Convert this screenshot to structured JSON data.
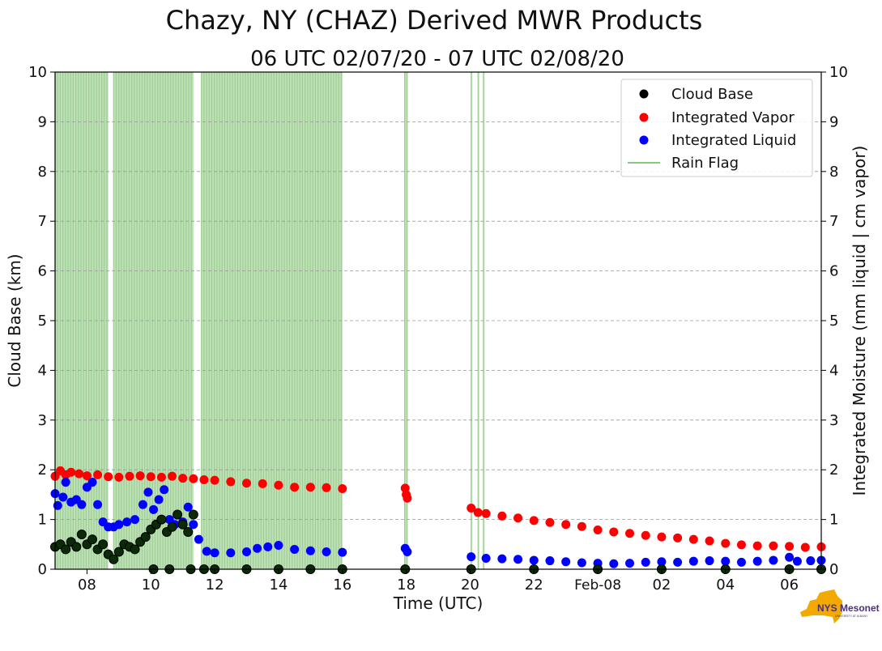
{
  "chart_data": {
    "type": "scatter",
    "title": "Chazy, NY (CHAZ) Derived MWR Products",
    "subtitle": "06 UTC 02/07/20 - 07 UTC 02/08/20",
    "xlabel": "Time (UTC)",
    "ylabel": "Cloud Base (km)",
    "ylabel_right": "Integrated Moisture (mm liquid | cm vapor)",
    "xlim": [
      "2020-02-07T07:00",
      "2020-02-08T07:00"
    ],
    "ylim": [
      0,
      10
    ],
    "ylim_right": [
      0,
      10
    ],
    "x_ticks": [
      {
        "t": "2020-02-07T08:00",
        "label": "08"
      },
      {
        "t": "2020-02-07T10:00",
        "label": "10"
      },
      {
        "t": "2020-02-07T12:00",
        "label": "12"
      },
      {
        "t": "2020-02-07T14:00",
        "label": "14"
      },
      {
        "t": "2020-02-07T16:00",
        "label": "16"
      },
      {
        "t": "2020-02-07T18:00",
        "label": "18"
      },
      {
        "t": "2020-02-07T20:00",
        "label": "20"
      },
      {
        "t": "2020-02-07T22:00",
        "label": "22"
      },
      {
        "t": "2020-02-08T00:00",
        "label": "Feb-08"
      },
      {
        "t": "2020-02-08T02:00",
        "label": "02"
      },
      {
        "t": "2020-02-08T04:00",
        "label": "04"
      },
      {
        "t": "2020-02-08T06:00",
        "label": "06"
      }
    ],
    "y_ticks": [
      "0",
      "1",
      "2",
      "3",
      "4",
      "5",
      "6",
      "7",
      "8",
      "9",
      "10"
    ],
    "grid": "horizontal dashed",
    "legend_position": "top-right",
    "legend": [
      {
        "label": "Cloud Base",
        "color": "#000000",
        "kind": "dot"
      },
      {
        "label": "Integrated Vapor",
        "color": "#ff0000",
        "kind": "dot"
      },
      {
        "label": "Integrated Liquid",
        "color": "#0000ff",
        "kind": "dot"
      },
      {
        "label": "Rain Flag",
        "color": "#5cb85c",
        "kind": "line"
      }
    ],
    "rain_flag_periods": [
      [
        "2020-02-07T07:00",
        "2020-02-07T08:40"
      ],
      [
        "2020-02-07T08:50",
        "2020-02-07T11:20"
      ],
      [
        "2020-02-07T11:35",
        "2020-02-07T16:00"
      ],
      [
        "2020-02-07T17:57",
        "2020-02-07T18:02"
      ],
      [
        "2020-02-07T20:02",
        "2020-02-07T20:04"
      ],
      [
        "2020-02-07T20:15",
        "2020-02-07T20:17"
      ],
      [
        "2020-02-07T20:25",
        "2020-02-07T20:27"
      ]
    ],
    "series": [
      {
        "name": "Integrated Vapor",
        "axis": "right",
        "color": "#ff0000",
        "points": [
          [
            "2020-02-07T07:00",
            1.87
          ],
          [
            "2020-02-07T07:10",
            1.98
          ],
          [
            "2020-02-07T07:20",
            1.9
          ],
          [
            "2020-02-07T07:30",
            1.95
          ],
          [
            "2020-02-07T07:45",
            1.92
          ],
          [
            "2020-02-07T08:00",
            1.88
          ],
          [
            "2020-02-07T08:20",
            1.9
          ],
          [
            "2020-02-07T08:40",
            1.86
          ],
          [
            "2020-02-07T09:00",
            1.85
          ],
          [
            "2020-02-07T09:20",
            1.87
          ],
          [
            "2020-02-07T09:40",
            1.88
          ],
          [
            "2020-02-07T10:00",
            1.86
          ],
          [
            "2020-02-07T10:20",
            1.85
          ],
          [
            "2020-02-07T10:40",
            1.87
          ],
          [
            "2020-02-07T11:00",
            1.83
          ],
          [
            "2020-02-07T11:20",
            1.82
          ],
          [
            "2020-02-07T11:40",
            1.8
          ],
          [
            "2020-02-07T12:00",
            1.79
          ],
          [
            "2020-02-07T12:30",
            1.76
          ],
          [
            "2020-02-07T13:00",
            1.73
          ],
          [
            "2020-02-07T13:30",
            1.72
          ],
          [
            "2020-02-07T14:00",
            1.69
          ],
          [
            "2020-02-07T14:30",
            1.65
          ],
          [
            "2020-02-07T15:00",
            1.65
          ],
          [
            "2020-02-07T15:30",
            1.64
          ],
          [
            "2020-02-07T16:00",
            1.62
          ],
          [
            "2020-02-07T17:58",
            1.63
          ],
          [
            "2020-02-07T18:00",
            1.5
          ],
          [
            "2020-02-07T18:02",
            1.43
          ],
          [
            "2020-02-07T20:02",
            1.23
          ],
          [
            "2020-02-07T20:15",
            1.14
          ],
          [
            "2020-02-07T20:30",
            1.12
          ],
          [
            "2020-02-07T21:00",
            1.07
          ],
          [
            "2020-02-07T21:30",
            1.03
          ],
          [
            "2020-02-07T22:00",
            0.98
          ],
          [
            "2020-02-07T22:30",
            0.94
          ],
          [
            "2020-02-07T23:00",
            0.9
          ],
          [
            "2020-02-07T23:30",
            0.86
          ],
          [
            "2020-02-08T00:00",
            0.79
          ],
          [
            "2020-02-08T00:30",
            0.75
          ],
          [
            "2020-02-08T01:00",
            0.72
          ],
          [
            "2020-02-08T01:30",
            0.68
          ],
          [
            "2020-02-08T02:00",
            0.65
          ],
          [
            "2020-02-08T02:30",
            0.63
          ],
          [
            "2020-02-08T03:00",
            0.6
          ],
          [
            "2020-02-08T03:30",
            0.57
          ],
          [
            "2020-02-08T04:00",
            0.52
          ],
          [
            "2020-02-08T04:30",
            0.49
          ],
          [
            "2020-02-08T05:00",
            0.47
          ],
          [
            "2020-02-08T05:30",
            0.47
          ],
          [
            "2020-02-08T06:00",
            0.46
          ],
          [
            "2020-02-08T06:30",
            0.44
          ],
          [
            "2020-02-08T07:00",
            0.45
          ]
        ]
      },
      {
        "name": "Integrated Liquid",
        "axis": "right",
        "color": "#0000ff",
        "points": [
          [
            "2020-02-07T07:00",
            1.52
          ],
          [
            "2020-02-07T07:05",
            1.28
          ],
          [
            "2020-02-07T07:15",
            1.45
          ],
          [
            "2020-02-07T07:20",
            1.75
          ],
          [
            "2020-02-07T07:30",
            1.35
          ],
          [
            "2020-02-07T07:40",
            1.4
          ],
          [
            "2020-02-07T07:50",
            1.3
          ],
          [
            "2020-02-07T08:00",
            1.65
          ],
          [
            "2020-02-07T08:10",
            1.75
          ],
          [
            "2020-02-07T08:20",
            1.3
          ],
          [
            "2020-02-07T08:30",
            0.95
          ],
          [
            "2020-02-07T08:40",
            0.85
          ],
          [
            "2020-02-07T08:50",
            0.85
          ],
          [
            "2020-02-07T09:00",
            0.9
          ],
          [
            "2020-02-07T09:15",
            0.95
          ],
          [
            "2020-02-07T09:30",
            1.0
          ],
          [
            "2020-02-07T09:45",
            1.3
          ],
          [
            "2020-02-07T09:55",
            1.55
          ],
          [
            "2020-02-07T10:05",
            1.2
          ],
          [
            "2020-02-07T10:15",
            1.4
          ],
          [
            "2020-02-07T10:25",
            1.6
          ],
          [
            "2020-02-07T10:35",
            1.0
          ],
          [
            "2020-02-07T10:45",
            0.9
          ],
          [
            "2020-02-07T11:00",
            0.95
          ],
          [
            "2020-02-07T11:10",
            1.25
          ],
          [
            "2020-02-07T11:20",
            0.9
          ],
          [
            "2020-02-07T11:30",
            0.6
          ],
          [
            "2020-02-07T11:45",
            0.36
          ],
          [
            "2020-02-07T12:00",
            0.33
          ],
          [
            "2020-02-07T12:30",
            0.33
          ],
          [
            "2020-02-07T13:00",
            0.35
          ],
          [
            "2020-02-07T13:20",
            0.42
          ],
          [
            "2020-02-07T13:40",
            0.45
          ],
          [
            "2020-02-07T14:00",
            0.48
          ],
          [
            "2020-02-07T14:30",
            0.4
          ],
          [
            "2020-02-07T15:00",
            0.37
          ],
          [
            "2020-02-07T15:30",
            0.35
          ],
          [
            "2020-02-07T16:00",
            0.34
          ],
          [
            "2020-02-07T17:58",
            0.42
          ],
          [
            "2020-02-07T18:02",
            0.35
          ],
          [
            "2020-02-07T20:02",
            0.25
          ],
          [
            "2020-02-07T20:30",
            0.22
          ],
          [
            "2020-02-07T21:00",
            0.21
          ],
          [
            "2020-02-07T21:30",
            0.2
          ],
          [
            "2020-02-07T22:00",
            0.18
          ],
          [
            "2020-02-07T22:30",
            0.17
          ],
          [
            "2020-02-07T23:00",
            0.15
          ],
          [
            "2020-02-07T23:30",
            0.13
          ],
          [
            "2020-02-08T00:00",
            0.12
          ],
          [
            "2020-02-08T00:30",
            0.11
          ],
          [
            "2020-02-08T01:00",
            0.12
          ],
          [
            "2020-02-08T01:30",
            0.14
          ],
          [
            "2020-02-08T02:00",
            0.15
          ],
          [
            "2020-02-08T02:30",
            0.14
          ],
          [
            "2020-02-08T03:00",
            0.16
          ],
          [
            "2020-02-08T03:30",
            0.17
          ],
          [
            "2020-02-08T04:00",
            0.16
          ],
          [
            "2020-02-08T04:30",
            0.14
          ],
          [
            "2020-02-08T05:00",
            0.16
          ],
          [
            "2020-02-08T05:30",
            0.18
          ],
          [
            "2020-02-08T06:00",
            0.24
          ],
          [
            "2020-02-08T06:15",
            0.16
          ],
          [
            "2020-02-08T06:40",
            0.17
          ],
          [
            "2020-02-08T07:00",
            0.18
          ]
        ]
      },
      {
        "name": "Cloud Base",
        "axis": "left",
        "color": "#000000",
        "points": [
          [
            "2020-02-07T07:00",
            0.45
          ],
          [
            "2020-02-07T07:10",
            0.5
          ],
          [
            "2020-02-07T07:20",
            0.4
          ],
          [
            "2020-02-07T07:30",
            0.55
          ],
          [
            "2020-02-07T07:40",
            0.45
          ],
          [
            "2020-02-07T07:50",
            0.7
          ],
          [
            "2020-02-07T08:00",
            0.5
          ],
          [
            "2020-02-07T08:10",
            0.6
          ],
          [
            "2020-02-07T08:20",
            0.4
          ],
          [
            "2020-02-07T08:30",
            0.5
          ],
          [
            "2020-02-07T08:40",
            0.3
          ],
          [
            "2020-02-07T08:50",
            0.2
          ],
          [
            "2020-02-07T09:00",
            0.35
          ],
          [
            "2020-02-07T09:10",
            0.5
          ],
          [
            "2020-02-07T09:20",
            0.45
          ],
          [
            "2020-02-07T09:30",
            0.4
          ],
          [
            "2020-02-07T09:40",
            0.55
          ],
          [
            "2020-02-07T09:50",
            0.65
          ],
          [
            "2020-02-07T10:00",
            0.8
          ],
          [
            "2020-02-07T10:10",
            0.9
          ],
          [
            "2020-02-07T10:20",
            1.0
          ],
          [
            "2020-02-07T10:30",
            0.75
          ],
          [
            "2020-02-07T10:40",
            0.85
          ],
          [
            "2020-02-07T10:50",
            1.1
          ],
          [
            "2020-02-07T11:00",
            0.9
          ],
          [
            "2020-02-07T11:10",
            0.75
          ],
          [
            "2020-02-07T11:20",
            1.1
          ],
          [
            "2020-02-07T10:05",
            0.0
          ],
          [
            "2020-02-07T10:35",
            0.0
          ],
          [
            "2020-02-07T11:15",
            0.0
          ],
          [
            "2020-02-07T11:40",
            0.0
          ],
          [
            "2020-02-07T12:00",
            0.0
          ],
          [
            "2020-02-07T13:00",
            0.0
          ],
          [
            "2020-02-07T14:00",
            0.0
          ],
          [
            "2020-02-07T15:00",
            0.0
          ],
          [
            "2020-02-07T16:00",
            0.0
          ],
          [
            "2020-02-07T17:58",
            0.0
          ],
          [
            "2020-02-07T20:02",
            0.0
          ],
          [
            "2020-02-07T22:00",
            0.0
          ],
          [
            "2020-02-08T00:00",
            0.0
          ],
          [
            "2020-02-08T02:00",
            0.0
          ],
          [
            "2020-02-08T04:00",
            0.0
          ],
          [
            "2020-02-08T06:00",
            0.0
          ],
          [
            "2020-02-08T07:00",
            0.0
          ]
        ]
      }
    ]
  },
  "logo": {
    "text": "NYS Mesonet",
    "subtext": "UNIVERSITY AT ALBANY"
  }
}
